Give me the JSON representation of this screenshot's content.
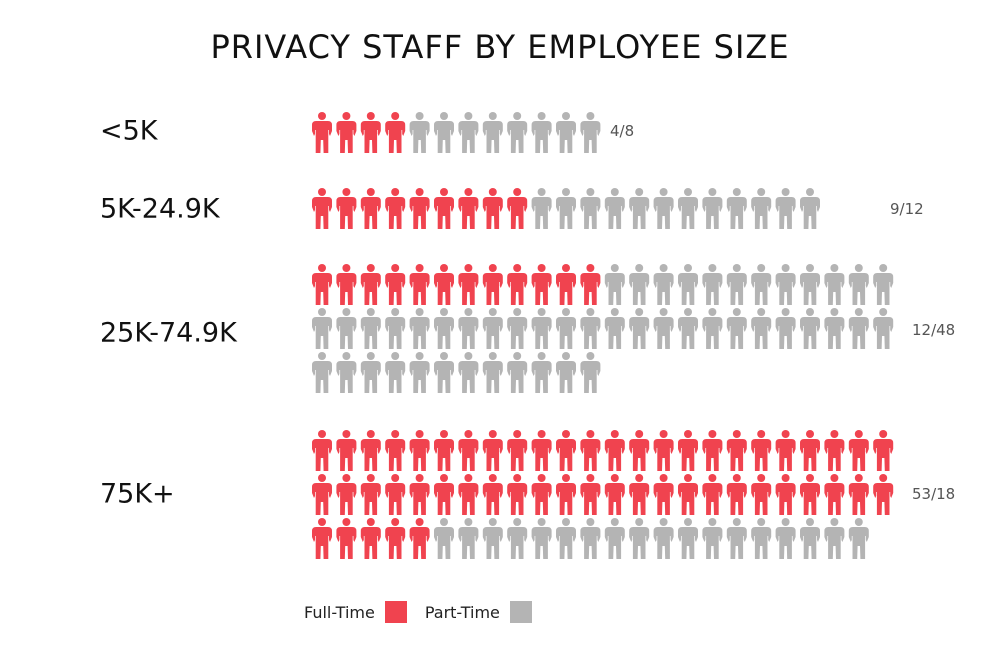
{
  "chart_data": {
    "type": "pictogram",
    "title": "PRIVACY STAFF BY EMPLOYEE SIZE",
    "categories": [
      "<5K",
      "5K-24.9K",
      "25K-74.9K",
      "75K+"
    ],
    "series": [
      {
        "name": "Full-Time",
        "color": "#f0434f",
        "values": [
          4,
          9,
          12,
          53
        ]
      },
      {
        "name": "Part-Time",
        "color": "#b4b4b4",
        "values": [
          8,
          12,
          48,
          18
        ]
      }
    ],
    "value_labels": [
      "4/8",
      "9/12",
      "12/48",
      "53/18"
    ],
    "legend": "bottom"
  }
}
